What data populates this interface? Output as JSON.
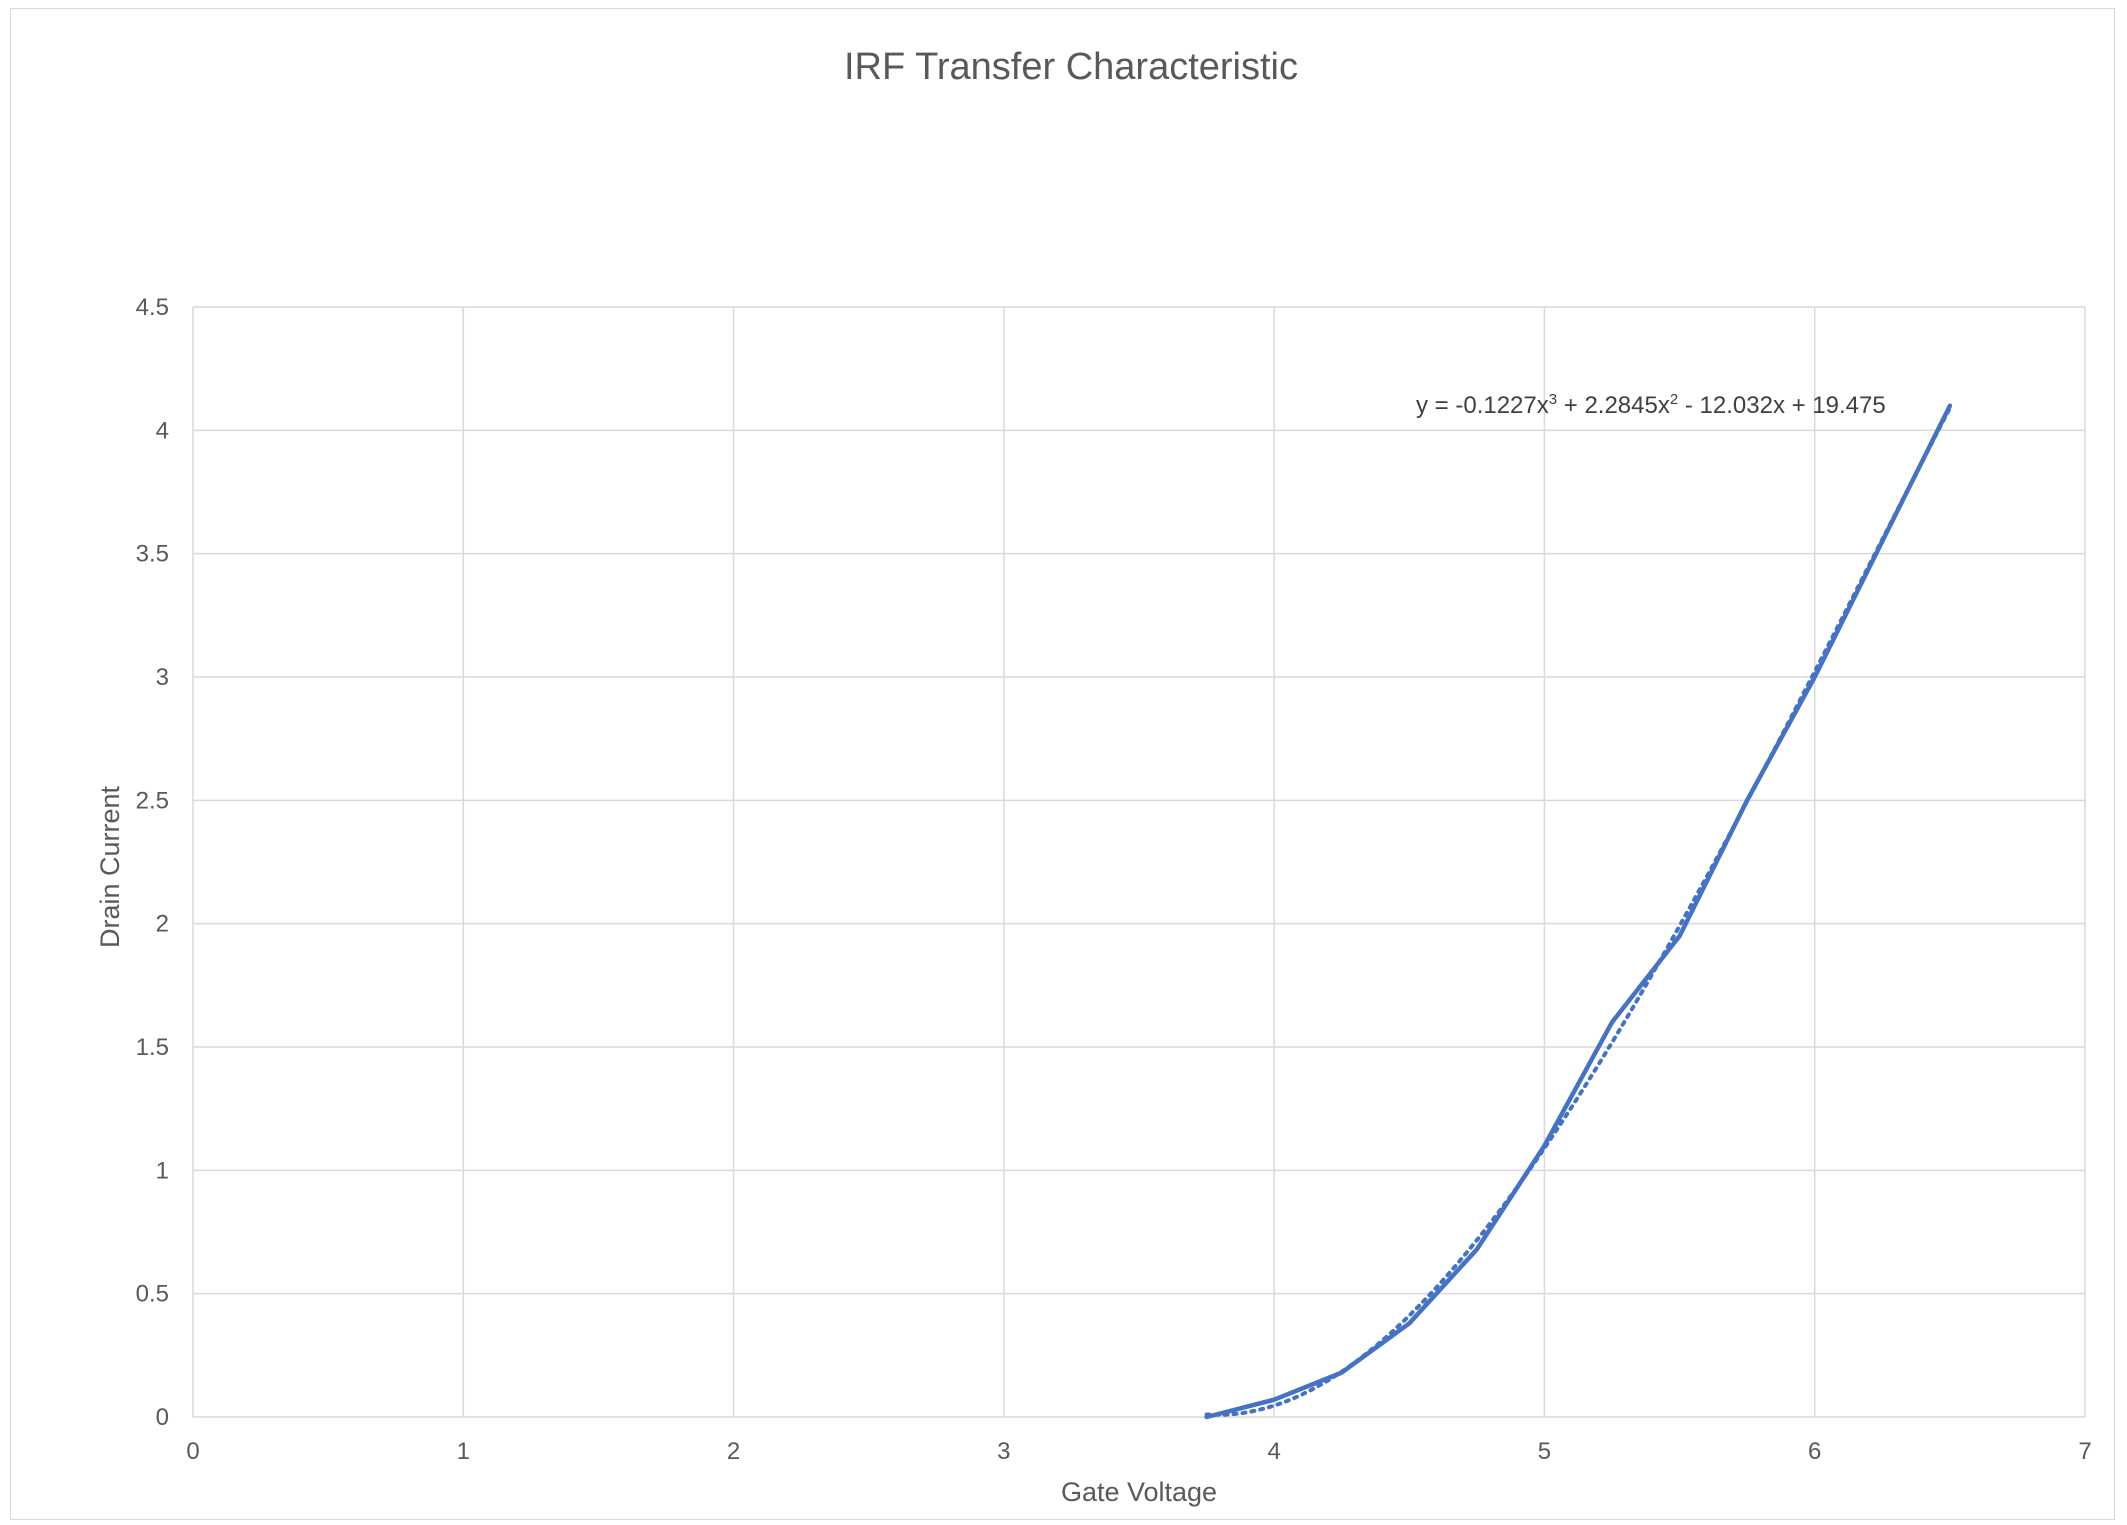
{
  "chart_data": {
    "type": "line",
    "title": "IRF Transfer Characteristic",
    "xlabel": "Gate Voltage",
    "ylabel": "Drain Current",
    "xlim": [
      0,
      7
    ],
    "ylim": [
      0,
      4.5
    ],
    "x_ticks": [
      "0",
      "1",
      "2",
      "3",
      "4",
      "5",
      "6",
      "7"
    ],
    "y_ticks": [
      "0",
      "0.5",
      "1",
      "1.5",
      "2",
      "2.5",
      "3",
      "3.5",
      "4",
      "4.5"
    ],
    "grid": true,
    "legend": "none",
    "series": [
      {
        "x": [
          3.75,
          4.0,
          4.25,
          4.5,
          4.75,
          5.0,
          5.25,
          5.5,
          5.75,
          6.0,
          6.25,
          6.5
        ],
        "y": [
          0.0,
          0.07,
          0.18,
          0.38,
          0.68,
          1.1,
          1.6,
          1.95,
          2.5,
          3.0,
          3.55,
          4.1
        ],
        "color": "#4472c4"
      }
    ],
    "trendline": {
      "kind": "polynomial",
      "order": 3,
      "coefficients": [
        -0.1227,
        2.2845,
        -12.032,
        19.475
      ],
      "x_range": [
        3.75,
        6.5
      ],
      "equation_label": {
        "prefix": "y = -0.1227x",
        "exp1": "3",
        "middle": " + 2.2845x",
        "exp2": "2",
        "suffix": " - 12.032x + 19.475"
      },
      "style": "dotted",
      "color": "#4472c4"
    }
  }
}
